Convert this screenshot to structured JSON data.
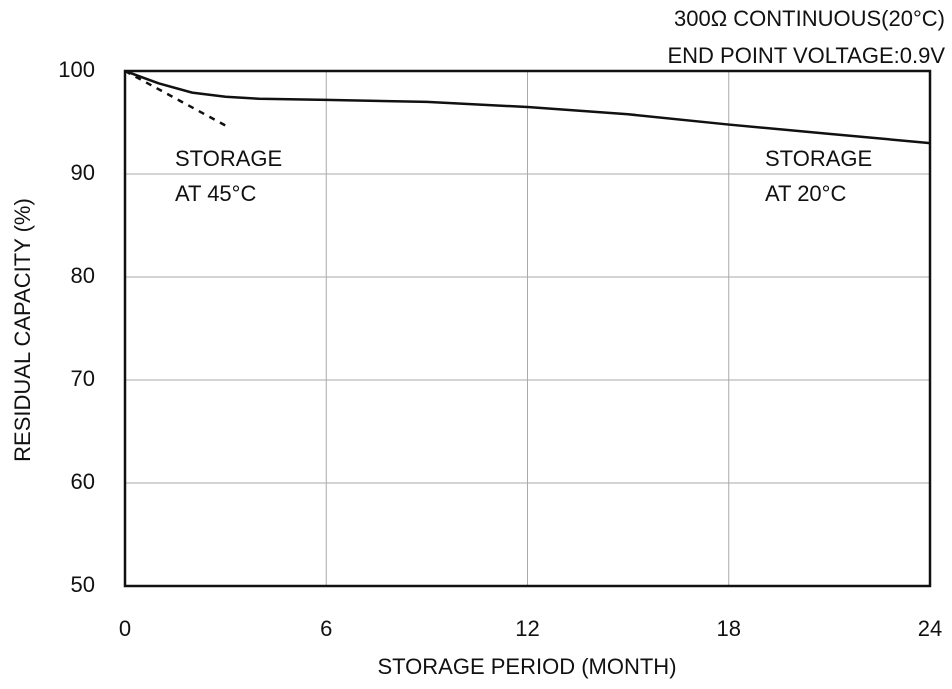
{
  "chart_data": {
    "type": "line",
    "annotations": [
      "300Ω CONTINUOUS(20°C)",
      "END POINT VOLTAGE:0.9V"
    ],
    "xlabel": "STORAGE PERIOD (MONTH)",
    "ylabel": "RESIDUAL CAPACITY (%)",
    "xlim": [
      0,
      24
    ],
    "xticks": [
      0,
      6,
      12,
      18,
      24
    ],
    "ylim": [
      50,
      100
    ],
    "yticks": [
      50,
      60,
      70,
      80,
      90,
      100
    ],
    "grid": true,
    "series": [
      {
        "label": [
          "STORAGE",
          "AT 20°C"
        ],
        "color": "#111111",
        "dashed": false,
        "x": [
          0,
          1,
          2,
          3,
          4,
          6,
          9,
          12,
          15,
          18,
          21,
          24
        ],
        "values": [
          100,
          98.8,
          97.9,
          97.5,
          97.3,
          97.2,
          97.0,
          96.5,
          95.8,
          94.8,
          93.9,
          93.0
        ]
      },
      {
        "label": [
          "STORAGE",
          "AT 45°C"
        ],
        "color": "#111111",
        "dashed": true,
        "x": [
          0,
          3
        ],
        "values": [
          100,
          94.7
        ]
      }
    ]
  }
}
